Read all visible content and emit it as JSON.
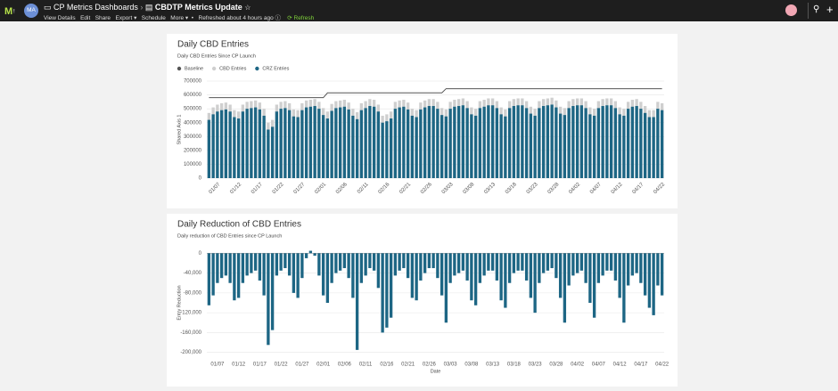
{
  "header": {
    "avatar": "MA",
    "breadcrumb": [
      "CP Metrics Dashboards",
      "CBDTP Metrics Update"
    ],
    "menu": [
      "View Details",
      "Edit",
      "Share",
      "Export ▾",
      "Schedule",
      "More ▾"
    ],
    "status": "Refreshed about 4 hours ago",
    "refresh": "Refresh"
  },
  "chart_data": [
    {
      "type": "bar",
      "title": "Daily CBD Entries",
      "subtitle": "Daily CBD Entries Since CP Launch",
      "y_label": "Shared Axis 1",
      "bar_mode": "overlay",
      "grid": true,
      "legend": "top-left",
      "categories": [
        null,
        null,
        "01/07",
        null,
        null,
        null,
        null,
        "01/12",
        null,
        null,
        null,
        null,
        "01/17",
        null,
        null,
        null,
        null,
        "01/22",
        null,
        null,
        null,
        null,
        "01/27",
        null,
        null,
        null,
        null,
        "02/01",
        null,
        null,
        null,
        null,
        "02/06",
        null,
        null,
        null,
        null,
        "02/11",
        null,
        null,
        null,
        null,
        "02/16",
        null,
        null,
        null,
        null,
        "02/21",
        null,
        null,
        null,
        null,
        "02/26",
        null,
        null,
        null,
        null,
        "03/03",
        null,
        null,
        null,
        null,
        "03/08",
        null,
        null,
        null,
        null,
        "03/13",
        null,
        null,
        null,
        null,
        "03/18",
        null,
        null,
        null,
        null,
        "03/23",
        null,
        null,
        null,
        null,
        "03/28",
        null,
        null,
        null,
        null,
        "04/02",
        null,
        null,
        null,
        null,
        "04/07",
        null,
        null,
        null,
        null,
        "04/12",
        null,
        null,
        null,
        null,
        "04/17",
        null,
        null,
        null,
        null,
        "04/22"
      ],
      "ylim": [
        0,
        700000
      ],
      "yticks": [
        0,
        100000,
        200000,
        300000,
        400000,
        500000,
        600000,
        700000
      ],
      "series": [
        {
          "name": "Baseline",
          "type": "line",
          "color": "#555555",
          "values": [
            580000,
            580000,
            580000,
            580000,
            580000,
            580000,
            580000,
            580000,
            580000,
            580000,
            580000,
            580000,
            580000,
            580000,
            580000,
            580000,
            580000,
            580000,
            580000,
            580000,
            580000,
            580000,
            580000,
            580000,
            580000,
            580000,
            580000,
            580000,
            615000,
            615000,
            615000,
            615000,
            615000,
            615000,
            615000,
            615000,
            615000,
            615000,
            615000,
            615000,
            615000,
            615000,
            615000,
            615000,
            615000,
            615000,
            615000,
            615000,
            615000,
            615000,
            615000,
            615000,
            615000,
            615000,
            615000,
            615000,
            645000,
            645000,
            645000,
            645000,
            645000,
            645000,
            645000,
            645000,
            645000,
            645000,
            645000,
            645000,
            645000,
            645000,
            645000,
            645000,
            645000,
            645000,
            645000,
            645000,
            645000,
            645000,
            645000,
            645000,
            645000,
            645000,
            645000,
            645000,
            645000,
            645000,
            645000,
            645000,
            645000,
            645000,
            645000,
            645000,
            645000,
            645000,
            645000,
            645000,
            645000,
            645000,
            645000,
            645000,
            645000,
            645000,
            645000,
            645000,
            645000,
            645000,
            645000,
            645000
          ]
        },
        {
          "name": "CBD Entries",
          "type": "bar",
          "color": "#cfcfcf",
          "values": [
            470000,
            510000,
            530000,
            540000,
            545000,
            530000,
            490000,
            480000,
            530000,
            550000,
            555000,
            560000,
            545000,
            500000,
            400000,
            420000,
            530000,
            550000,
            555000,
            540000,
            495000,
            490000,
            540000,
            560000,
            565000,
            570000,
            550000,
            505000,
            480000,
            535000,
            555000,
            560000,
            565000,
            545000,
            500000,
            475000,
            540000,
            555000,
            570000,
            565000,
            530000,
            450000,
            460000,
            480000,
            550000,
            560000,
            565000,
            545000,
            500000,
            490000,
            545000,
            560000,
            570000,
            570000,
            550000,
            505000,
            495000,
            550000,
            565000,
            570000,
            575000,
            555000,
            510000,
            500000,
            555000,
            565000,
            575000,
            575000,
            555000,
            510000,
            495000,
            555000,
            570000,
            575000,
            575000,
            555000,
            515000,
            500000,
            555000,
            570000,
            575000,
            580000,
            560000,
            515000,
            505000,
            555000,
            570000,
            575000,
            575000,
            555000,
            510000,
            500000,
            555000,
            570000,
            575000,
            575000,
            555000,
            510000,
            500000,
            550000,
            565000,
            570000,
            550000,
            520000,
            490000,
            490000,
            550000,
            540000
          ]
        },
        {
          "name": "CRZ Entries",
          "type": "bar",
          "color": "#1d6684",
          "values": [
            420000,
            460000,
            480000,
            490000,
            495000,
            480000,
            440000,
            430000,
            480000,
            500000,
            505000,
            510000,
            495000,
            450000,
            350000,
            370000,
            480000,
            500000,
            505000,
            490000,
            445000,
            440000,
            490000,
            510000,
            515000,
            520000,
            500000,
            455000,
            430000,
            485000,
            505000,
            510000,
            515000,
            495000,
            450000,
            425000,
            490000,
            505000,
            520000,
            515000,
            480000,
            400000,
            410000,
            430000,
            500000,
            510000,
            515000,
            495000,
            450000,
            440000,
            495000,
            510000,
            520000,
            520000,
            500000,
            455000,
            445000,
            500000,
            515000,
            520000,
            525000,
            505000,
            460000,
            450000,
            505000,
            515000,
            525000,
            525000,
            505000,
            460000,
            445000,
            505000,
            520000,
            525000,
            525000,
            505000,
            465000,
            450000,
            505000,
            520000,
            525000,
            530000,
            510000,
            465000,
            455000,
            505000,
            520000,
            525000,
            525000,
            505000,
            460000,
            450000,
            505000,
            520000,
            525000,
            525000,
            505000,
            460000,
            450000,
            500000,
            515000,
            520000,
            500000,
            470000,
            440000,
            440000,
            500000,
            490000
          ]
        }
      ]
    },
    {
      "type": "bar",
      "title": "Daily Reduction of CBD Entries",
      "subtitle": "Daily reduction of CBD Entries since CP Launch",
      "y_label": "Entry Reduction",
      "x_label": "Date",
      "grid": true,
      "color": "#1d6684",
      "categories": [
        null,
        null,
        "01/07",
        null,
        null,
        null,
        null,
        "01/12",
        null,
        null,
        null,
        null,
        "01/17",
        null,
        null,
        null,
        null,
        "01/22",
        null,
        null,
        null,
        null,
        "01/27",
        null,
        null,
        null,
        null,
        "02/01",
        null,
        null,
        null,
        null,
        "02/06",
        null,
        null,
        null,
        null,
        "02/11",
        null,
        null,
        null,
        null,
        "02/16",
        null,
        null,
        null,
        null,
        "02/21",
        null,
        null,
        null,
        null,
        "02/26",
        null,
        null,
        null,
        null,
        "03/03",
        null,
        null,
        null,
        null,
        "03/08",
        null,
        null,
        null,
        null,
        "03/13",
        null,
        null,
        null,
        null,
        "03/18",
        null,
        null,
        null,
        null,
        "03/23",
        null,
        null,
        null,
        null,
        "03/28",
        null,
        null,
        null,
        null,
        "04/02",
        null,
        null,
        null,
        null,
        "04/07",
        null,
        null,
        null,
        null,
        "04/12",
        null,
        null,
        null,
        null,
        "04/17",
        null,
        null,
        null,
        null,
        "04/22"
      ],
      "ylim": [
        -215000,
        15000
      ],
      "yticks": [
        {
          "value": -200000,
          "label": "-200,000"
        },
        {
          "value": -160000,
          "label": "-160,000"
        },
        {
          "value": -120000,
          "label": "-120,000"
        },
        {
          "value": -80000,
          "label": "-80,000"
        },
        {
          "value": -40000,
          "label": "-40,000"
        },
        0
      ],
      "values": [
        -105000,
        -85000,
        -60000,
        -50000,
        -45000,
        -60000,
        -95000,
        -90000,
        -60000,
        -45000,
        -40000,
        -35000,
        -55000,
        -85000,
        -185000,
        -155000,
        -45000,
        -35000,
        -30000,
        -45000,
        -80000,
        -90000,
        -50000,
        -10000,
        5000,
        -5000,
        -45000,
        -85000,
        -100000,
        -60000,
        -40000,
        -35000,
        -30000,
        -50000,
        -90000,
        -195000,
        -60000,
        -45000,
        -30000,
        -35000,
        -70000,
        -160000,
        -150000,
        -130000,
        -45000,
        -35000,
        -30000,
        -50000,
        -90000,
        -95000,
        -55000,
        -40000,
        -30000,
        -30000,
        -50000,
        -85000,
        -140000,
        -60000,
        -45000,
        -40000,
        -35000,
        -55000,
        -95000,
        -105000,
        -60000,
        -45000,
        -35000,
        -35000,
        -55000,
        -95000,
        -110000,
        -60000,
        -40000,
        -35000,
        -35000,
        -55000,
        -90000,
        -120000,
        -60000,
        -40000,
        -35000,
        -30000,
        -50000,
        -90000,
        -140000,
        -65000,
        -45000,
        -40000,
        -35000,
        -60000,
        -100000,
        -130000,
        -60000,
        -45000,
        -35000,
        -35000,
        -55000,
        -90000,
        -140000,
        -65000,
        -45000,
        -40000,
        -60000,
        -85000,
        -110000,
        -125000,
        -65000,
        -85000
      ]
    }
  ]
}
